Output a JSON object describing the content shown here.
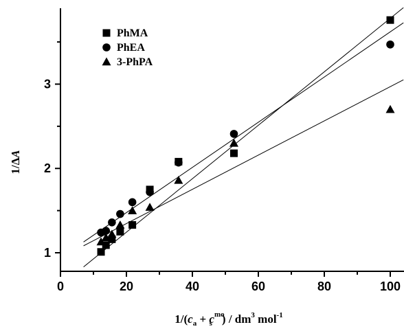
{
  "chart_data": {
    "type": "scatter",
    "title": "",
    "xlabel": {
      "prefix": "1/(",
      "c1": "c",
      "sub1": "a",
      "plus": " + ",
      "c2": "c",
      "sup2": "mo",
      "sub2": "s",
      "suffix": ")  / dm",
      "sup3": "3",
      "mol": " mol",
      "sup4": "-1"
    },
    "ylabel": {
      "prefix": "1/Δ",
      "italic": "A"
    },
    "xlim": [
      0,
      100
    ],
    "ylim": [
      0.78,
      3.9
    ],
    "xticks": [
      0,
      20,
      40,
      60,
      80,
      100
    ],
    "yticks": [
      1,
      2,
      3
    ],
    "legend_position": "top-left",
    "series": [
      {
        "name": "PhMA",
        "marker": "square",
        "x": [
          12.3,
          13.8,
          15.6,
          18.1,
          21.8,
          27.1,
          35.8,
          52.6,
          100.0
        ],
        "y": [
          1.01,
          1.09,
          1.16,
          1.25,
          1.33,
          1.75,
          2.08,
          2.18,
          3.76
        ],
        "fit": [
          [
            12.3,
            1.0
          ],
          [
            100.0,
            3.78
          ]
        ]
      },
      {
        "name": "PhEA",
        "marker": "circle",
        "x": [
          12.3,
          13.8,
          15.6,
          18.1,
          21.8,
          27.1,
          35.8,
          52.6,
          100.0
        ],
        "y": [
          1.24,
          1.26,
          1.36,
          1.46,
          1.6,
          1.72,
          2.07,
          2.41,
          3.47
        ],
        "fit": [
          [
            12.3,
            1.27
          ],
          [
            100.0,
            3.62
          ]
        ]
      },
      {
        "name": "3-PhPA",
        "marker": "triangle",
        "x": [
          12.3,
          13.8,
          15.6,
          18.1,
          21.8,
          27.1,
          35.8,
          52.6,
          100.0
        ],
        "y": [
          1.13,
          1.18,
          1.22,
          1.33,
          1.5,
          1.54,
          1.86,
          2.3,
          2.7
        ],
        "fit": [
          [
            12.3,
            1.19
          ],
          [
            100.0,
            2.97
          ]
        ]
      }
    ]
  }
}
